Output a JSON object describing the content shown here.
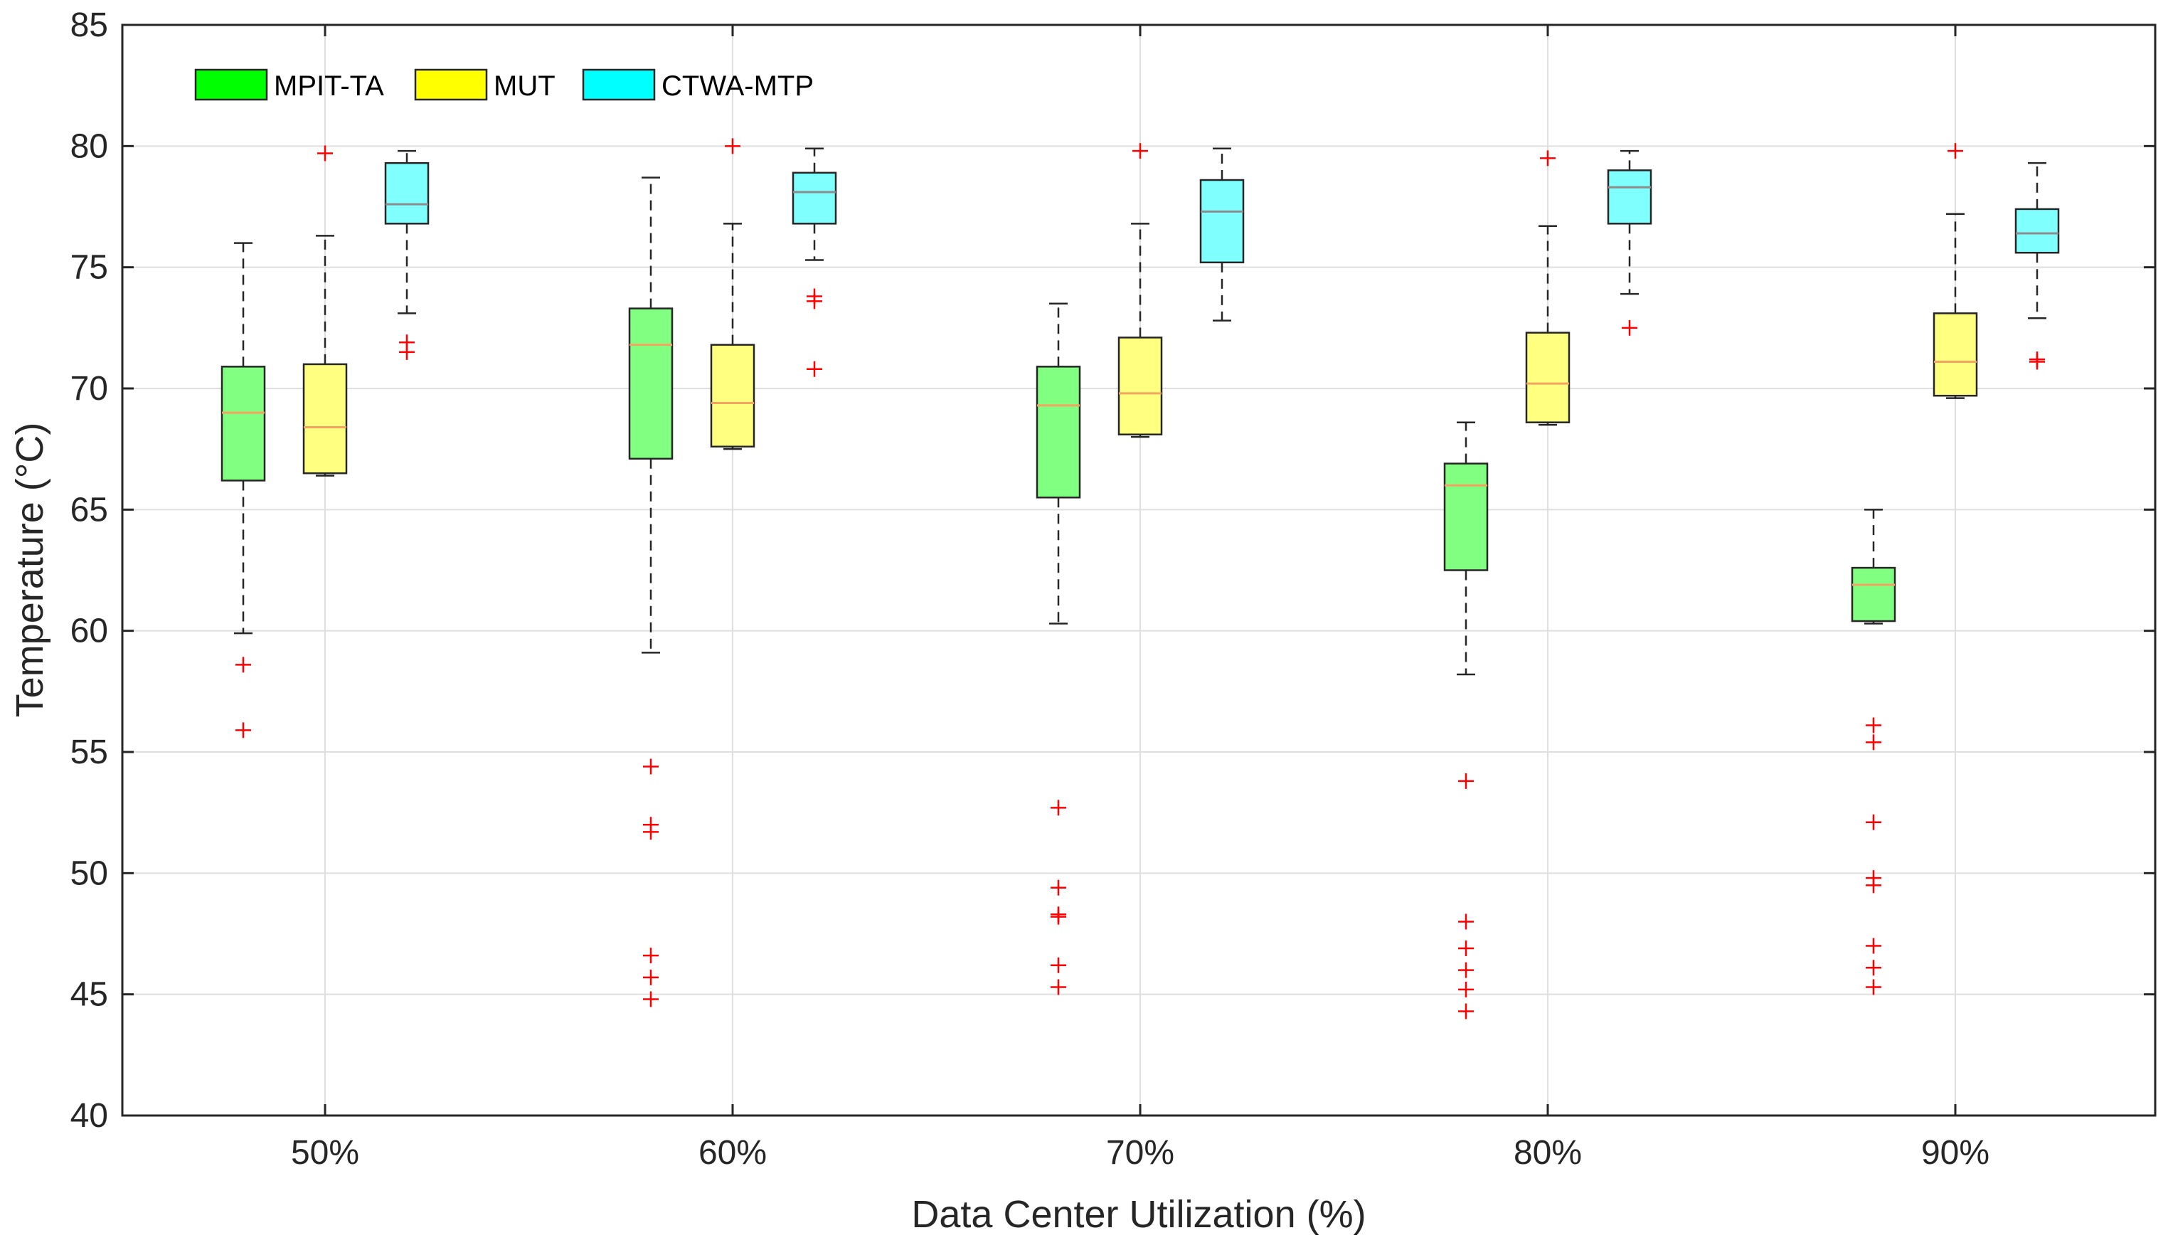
{
  "chart_data": {
    "type": "box",
    "xlabel": "Data Center Utilization (%)",
    "ylabel": "Temperature (°C)",
    "ylim": [
      40,
      85
    ],
    "yticks": [
      40,
      45,
      50,
      55,
      60,
      65,
      70,
      75,
      80,
      85
    ],
    "grid": true,
    "legend_position": "top-left",
    "categories": [
      "50%",
      "60%",
      "70%",
      "80%",
      "90%"
    ],
    "series": [
      {
        "name": "MPIT-TA",
        "color": "#00ff00",
        "fill": "#80ff80",
        "median_color": "#f4a460",
        "boxes": [
          {
            "whisker_low": 59.9,
            "q1": 66.2,
            "median": 69.0,
            "q3": 70.9,
            "whisker_high": 76.0,
            "outliers": [
              58.6,
              55.9
            ]
          },
          {
            "whisker_low": 59.1,
            "q1": 67.1,
            "median": 71.8,
            "q3": 73.3,
            "whisker_high": 78.7,
            "outliers": [
              54.4,
              52.0,
              51.7,
              46.6,
              45.7,
              44.8
            ]
          },
          {
            "whisker_low": 60.3,
            "q1": 65.5,
            "median": 69.3,
            "q3": 70.9,
            "whisker_high": 73.5,
            "outliers": [
              52.7,
              49.4,
              48.3,
              48.2,
              46.2,
              45.3
            ]
          },
          {
            "whisker_low": 58.2,
            "q1": 62.5,
            "median": 66.0,
            "q3": 66.9,
            "whisker_high": 68.6,
            "outliers": [
              53.8,
              48.0,
              46.9,
              46.0,
              45.2,
              44.3
            ]
          },
          {
            "whisker_low": 60.3,
            "q1": 60.4,
            "median": 61.9,
            "q3": 62.6,
            "whisker_high": 65.0,
            "outliers": [
              56.1,
              55.4,
              52.1,
              49.8,
              49.5,
              47.0,
              46.1,
              45.3
            ]
          }
        ]
      },
      {
        "name": "MUT",
        "color": "#ffff00",
        "fill": "#ffff80",
        "median_color": "#f4a460",
        "boxes": [
          {
            "whisker_low": 66.4,
            "q1": 66.5,
            "median": 68.4,
            "q3": 71.0,
            "whisker_high": 76.3,
            "outliers": [
              79.7
            ]
          },
          {
            "whisker_low": 67.5,
            "q1": 67.6,
            "median": 69.4,
            "q3": 71.8,
            "whisker_high": 76.8,
            "outliers": [
              80.0
            ]
          },
          {
            "whisker_low": 68.0,
            "q1": 68.1,
            "median": 69.8,
            "q3": 72.1,
            "whisker_high": 76.8,
            "outliers": [
              79.8
            ]
          },
          {
            "whisker_low": 68.5,
            "q1": 68.6,
            "median": 70.2,
            "q3": 72.3,
            "whisker_high": 76.7,
            "outliers": [
              79.5
            ]
          },
          {
            "whisker_low": 69.6,
            "q1": 69.7,
            "median": 71.1,
            "q3": 73.1,
            "whisker_high": 77.2,
            "outliers": [
              79.8
            ]
          }
        ]
      },
      {
        "name": "CTWA-MTP",
        "color": "#00ffff",
        "fill": "#80ffff",
        "median_color": "#8c8c8c",
        "boxes": [
          {
            "whisker_low": 73.1,
            "q1": 76.8,
            "median": 77.6,
            "q3": 79.3,
            "whisker_high": 79.8,
            "outliers": [
              71.9,
              71.5
            ]
          },
          {
            "whisker_low": 75.3,
            "q1": 76.8,
            "median": 78.1,
            "q3": 78.9,
            "whisker_high": 79.9,
            "outliers": [
              73.8,
              73.6,
              70.8
            ]
          },
          {
            "whisker_low": 72.8,
            "q1": 75.2,
            "median": 77.3,
            "q3": 78.6,
            "whisker_high": 79.9,
            "outliers": []
          },
          {
            "whisker_low": 73.9,
            "q1": 76.8,
            "median": 78.3,
            "q3": 79.0,
            "whisker_high": 79.8,
            "outliers": [
              72.5
            ]
          },
          {
            "whisker_low": 72.9,
            "q1": 75.6,
            "median": 76.4,
            "q3": 77.4,
            "whisker_high": 79.3,
            "outliers": [
              71.2,
              71.1
            ]
          }
        ]
      }
    ]
  }
}
